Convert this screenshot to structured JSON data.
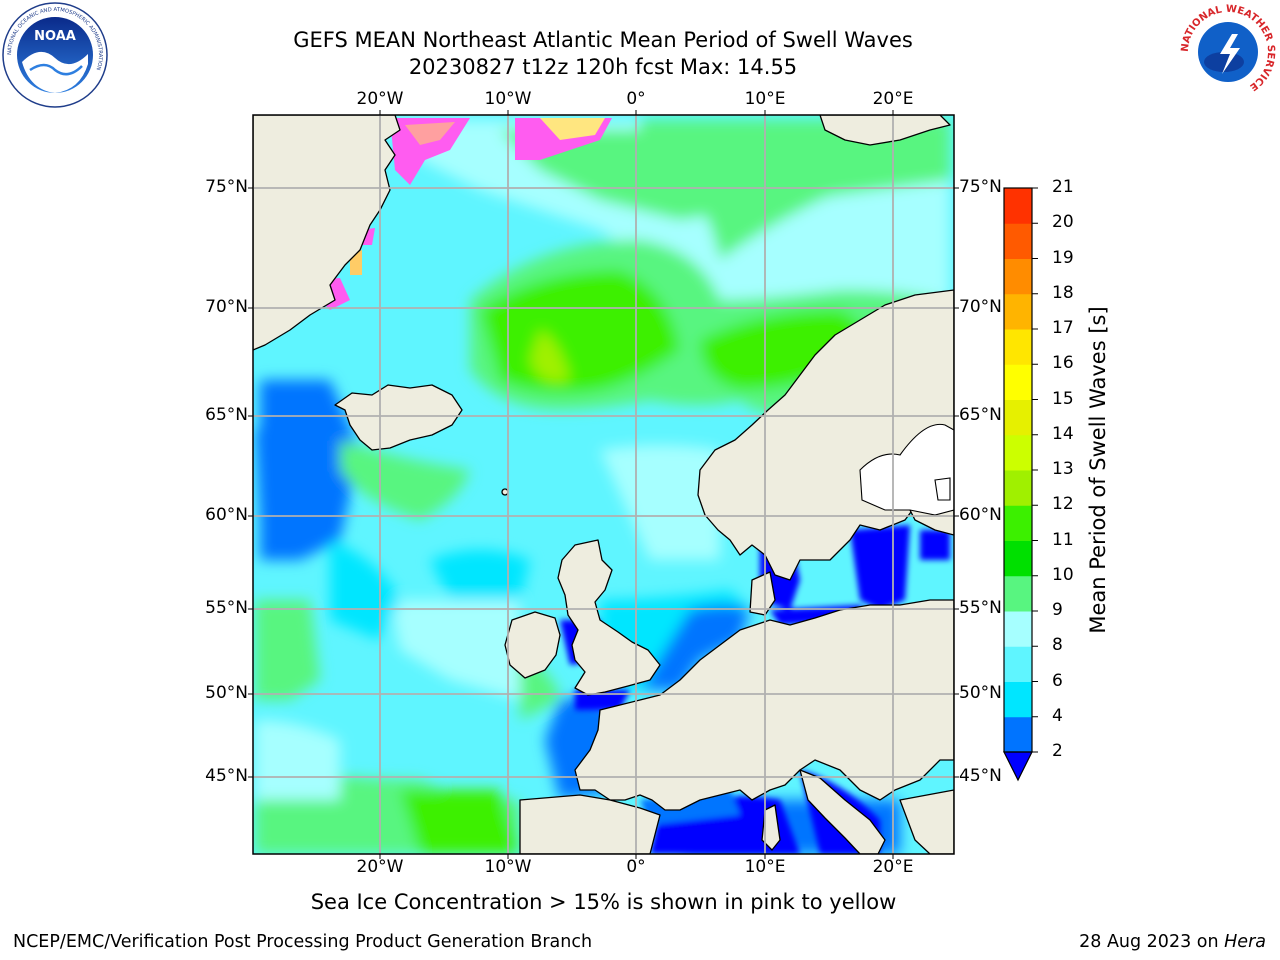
{
  "title": {
    "line1": "GEFS MEAN Northeast Atlantic Mean Period of Swell Waves",
    "line2": "20230827 t12z 120h fcst   Max: 14.55"
  },
  "map": {
    "lon_range": [
      -30,
      25
    ],
    "lat_range": [
      41,
      78
    ],
    "lon_labels": [
      "20°W",
      "10°W",
      "0°",
      "10°E",
      "20°E"
    ],
    "lat_labels": [
      "45°N",
      "50°N",
      "55°N",
      "60°N",
      "65°N",
      "70°N",
      "75°N"
    ],
    "ice_note": "Sea Ice Concentration > 15% is shown in pink to yellow",
    "colors": {
      "land": "#eeeddf",
      "grid": "#b0b0b0",
      "lakes_and_white_land": "#ffffff"
    }
  },
  "colorbar": {
    "label": "Mean Period of Swell Waves [s]",
    "ticks": [
      "2",
      "4",
      "6",
      "8",
      "9",
      "10",
      "11",
      "12",
      "13",
      "14",
      "15",
      "16",
      "17",
      "18",
      "19",
      "20",
      "21"
    ],
    "colors": [
      "#0074ff",
      "#00e6ff",
      "#5ff5ff",
      "#a6ffff",
      "#58f580",
      "#00e000",
      "#3cf000",
      "#a0f000",
      "#ccff00",
      "#e6f000",
      "#ffff00",
      "#ffe600",
      "#ffb400",
      "#ff8c00",
      "#ff5a00",
      "#ff3200",
      "#ff0000"
    ],
    "under_color": "#0000ff"
  },
  "logos": {
    "noaa": {
      "text": "NOAA",
      "ring_text": "NATIONAL OCEANIC AND ATMOSPHERIC ADMINISTRATION"
    },
    "nws": {
      "ring_text": "NATIONAL WEATHER SERVICE"
    }
  },
  "footer": {
    "left": "NCEP/EMC/Verification Post Processing Product Generation Branch",
    "right_prefix": "28 Aug 2023 on ",
    "right_machine": "Hera"
  }
}
